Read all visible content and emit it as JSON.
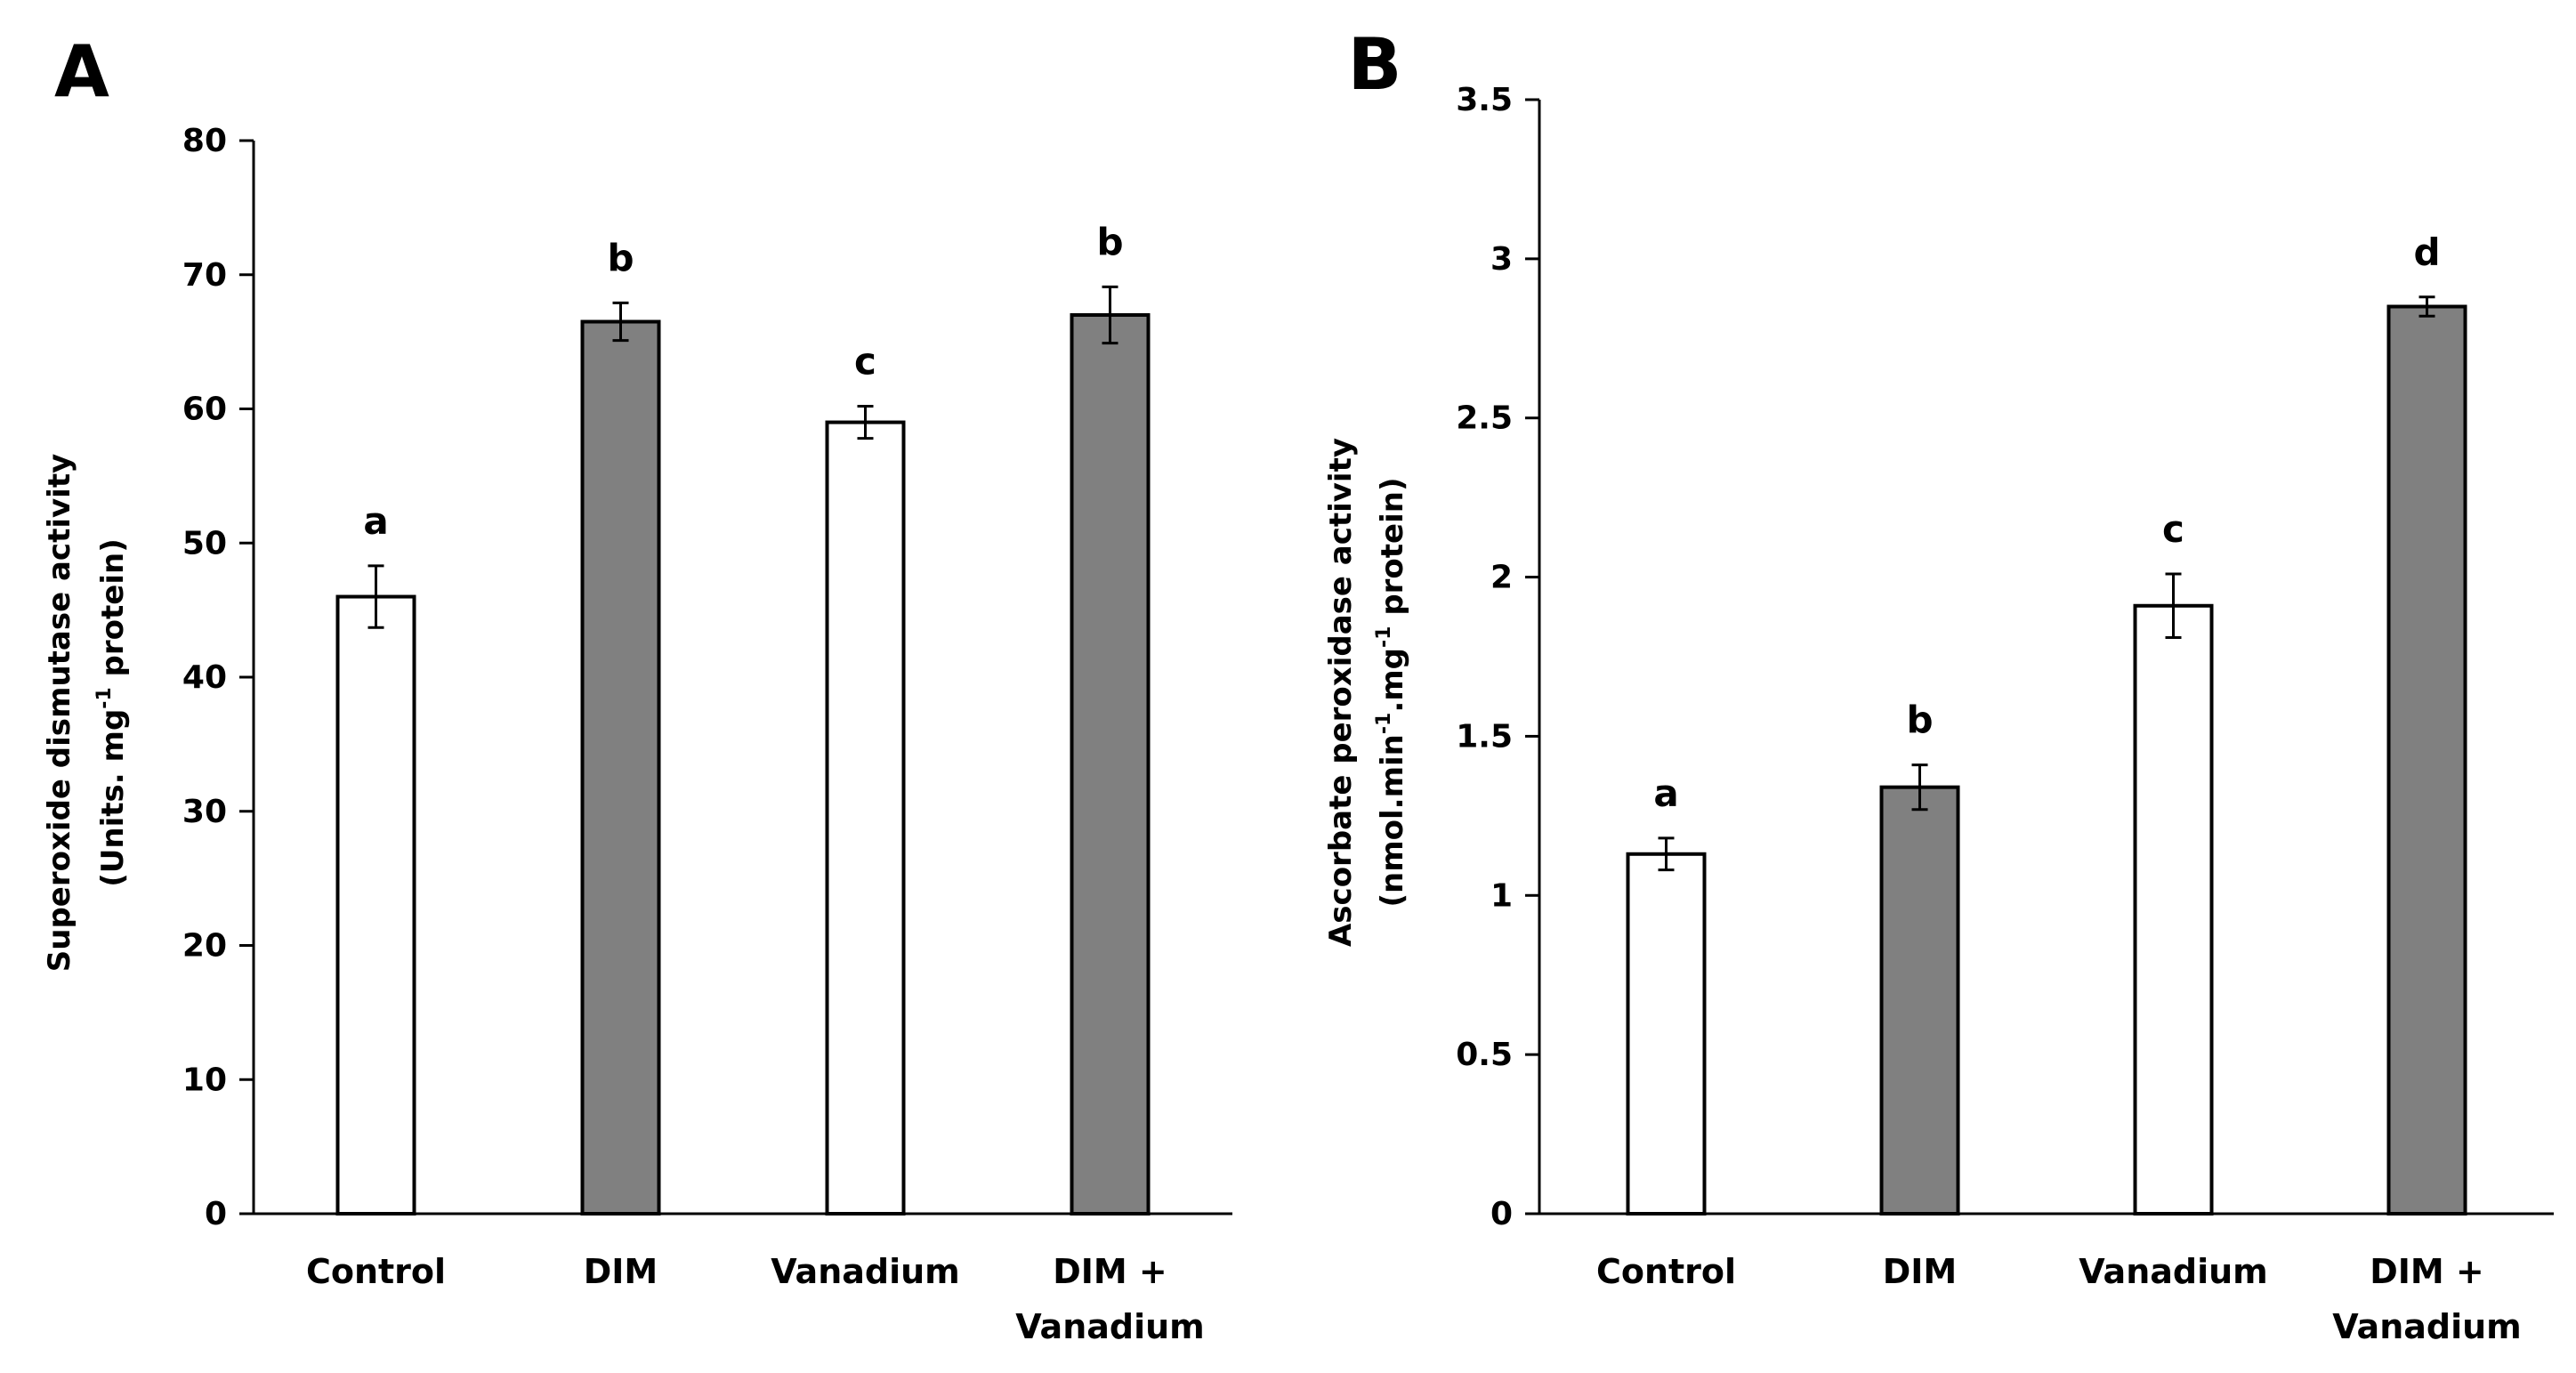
{
  "chart_data": [
    {
      "panel": "A",
      "type": "bar",
      "categories": [
        [
          "Control"
        ],
        [
          "DIM"
        ],
        [
          "Vanadium"
        ],
        [
          "DIM +",
          "Vanadium"
        ]
      ],
      "values": [
        46,
        66.5,
        59,
        67
      ],
      "errors": [
        2.3,
        1.4,
        1.2,
        2.1
      ],
      "significance": [
        "a",
        "b",
        "c",
        "b"
      ],
      "bar_colors": [
        "#ffffff",
        "#808080",
        "#ffffff",
        "#808080"
      ],
      "ylabel_line1": "Superoxide dismutase activity",
      "ylabel_line2": {
        "pre": "(Units. mg",
        "sup": "-1",
        "post": " protein)"
      },
      "ylim": [
        0,
        80
      ],
      "yticks": [
        0,
        10,
        20,
        30,
        40,
        50,
        60,
        70,
        80
      ],
      "ytick_labels": [
        "0",
        "10",
        "20",
        "30",
        "40",
        "50",
        "60",
        "70",
        "80"
      ]
    },
    {
      "panel": "B",
      "type": "bar",
      "categories": [
        [
          "Control"
        ],
        [
          "DIM"
        ],
        [
          "Vanadium"
        ],
        [
          "DIM +",
          "Vanadium"
        ]
      ],
      "values": [
        1.13,
        1.34,
        1.91,
        2.85
      ],
      "errors": [
        0.05,
        0.07,
        0.1,
        0.03
      ],
      "significance": [
        "a",
        "b",
        "c",
        "d"
      ],
      "bar_colors": [
        "#ffffff",
        "#808080",
        "#ffffff",
        "#808080"
      ],
      "ylabel_line1": "Ascorbate peroxidase activity",
      "ylabel_line2": {
        "pre": "(nmol.min",
        "sup": "-1",
        "mid": ".mg",
        "sup2": "-1",
        "post": " protein)"
      },
      "ylim": [
        0,
        3.5
      ],
      "yticks": [
        0,
        0.5,
        1,
        1.5,
        2,
        2.5,
        3,
        3.5
      ],
      "ytick_labels": [
        "0",
        "0.5",
        "1",
        "1.5",
        "2",
        "2.5",
        "3",
        "3.5"
      ]
    }
  ]
}
